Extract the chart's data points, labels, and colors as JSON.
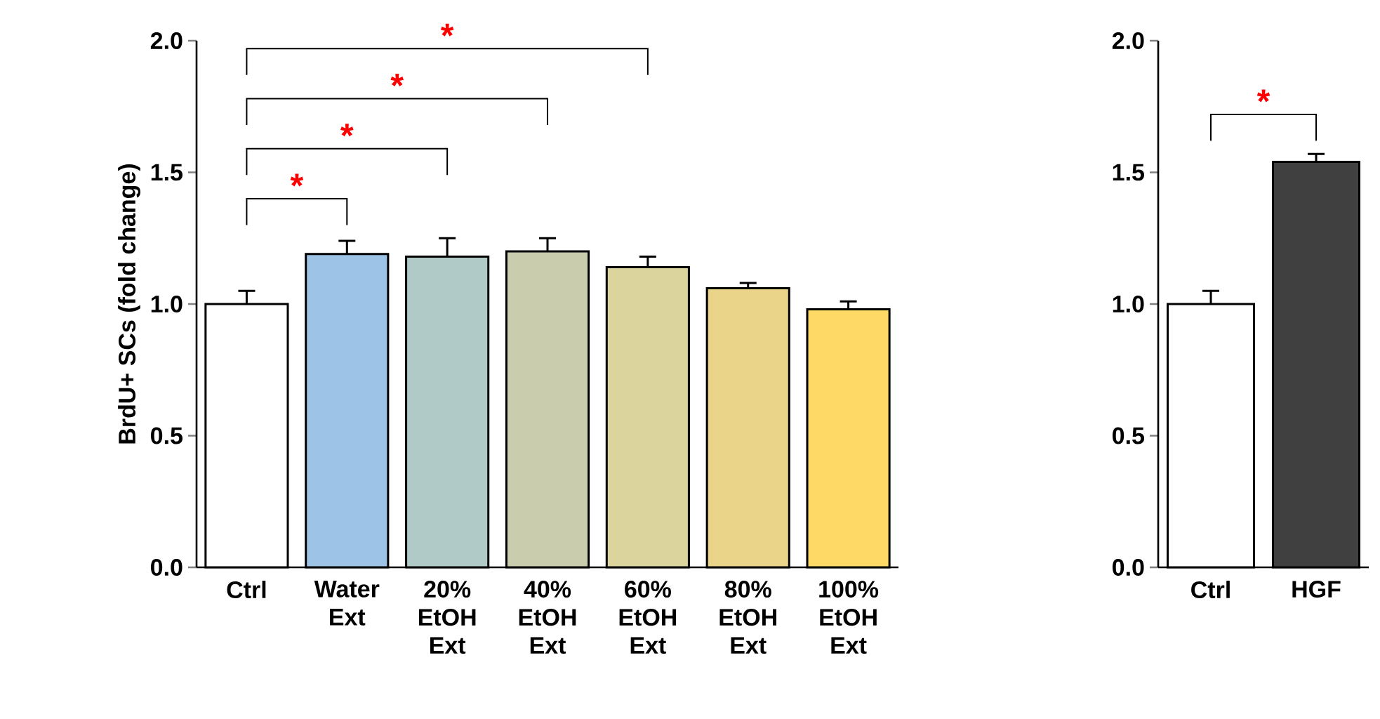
{
  "chart_data": [
    {
      "type": "bar",
      "ylabel": "BrdU+ SCs (fold change)",
      "categories": [
        "Ctrl",
        "Water Ext",
        "20% EtOH Ext",
        "40% EtOH Ext",
        "60% EtOH Ext",
        "80% EtOH Ext",
        "100% EtOH Ext"
      ],
      "values": [
        1.0,
        1.19,
        1.18,
        1.2,
        1.14,
        1.06,
        0.98
      ],
      "errors": [
        0.05,
        0.05,
        0.07,
        0.05,
        0.04,
        0.02,
        0.03
      ],
      "colors": [
        "#ffffff",
        "#9dc3e6",
        "#b0cac7",
        "#c9cdae",
        "#dbd49c",
        "#ead48a",
        "#ffd966"
      ],
      "ylim": [
        0,
        2.0
      ],
      "yticks": [
        {
          "value": 0,
          "label": "0.0"
        },
        {
          "value": 0.5,
          "label": "0.5"
        },
        {
          "value": 1.0,
          "label": "1.0"
        },
        {
          "value": 1.5,
          "label": "1.5"
        },
        {
          "value": 2.0,
          "label": "2.0"
        }
      ],
      "annotations": [
        "*",
        "*",
        "*",
        "*"
      ]
    },
    {
      "type": "bar",
      "categories": [
        "Ctrl",
        "HGF"
      ],
      "values": [
        1.0,
        1.54
      ],
      "errors": [
        0.05,
        0.03
      ],
      "colors": [
        "#ffffff",
        "#404040"
      ],
      "ylim": [
        0,
        2.0
      ],
      "yticks": [
        {
          "value": 0,
          "label": "0.0"
        },
        {
          "value": 0.5,
          "label": "0.5"
        },
        {
          "value": 1.0,
          "label": "1.0"
        },
        {
          "value": 1.5,
          "label": "1.5"
        },
        {
          "value": 2.0,
          "label": "2.0"
        }
      ],
      "annotations": [
        "*"
      ]
    }
  ]
}
